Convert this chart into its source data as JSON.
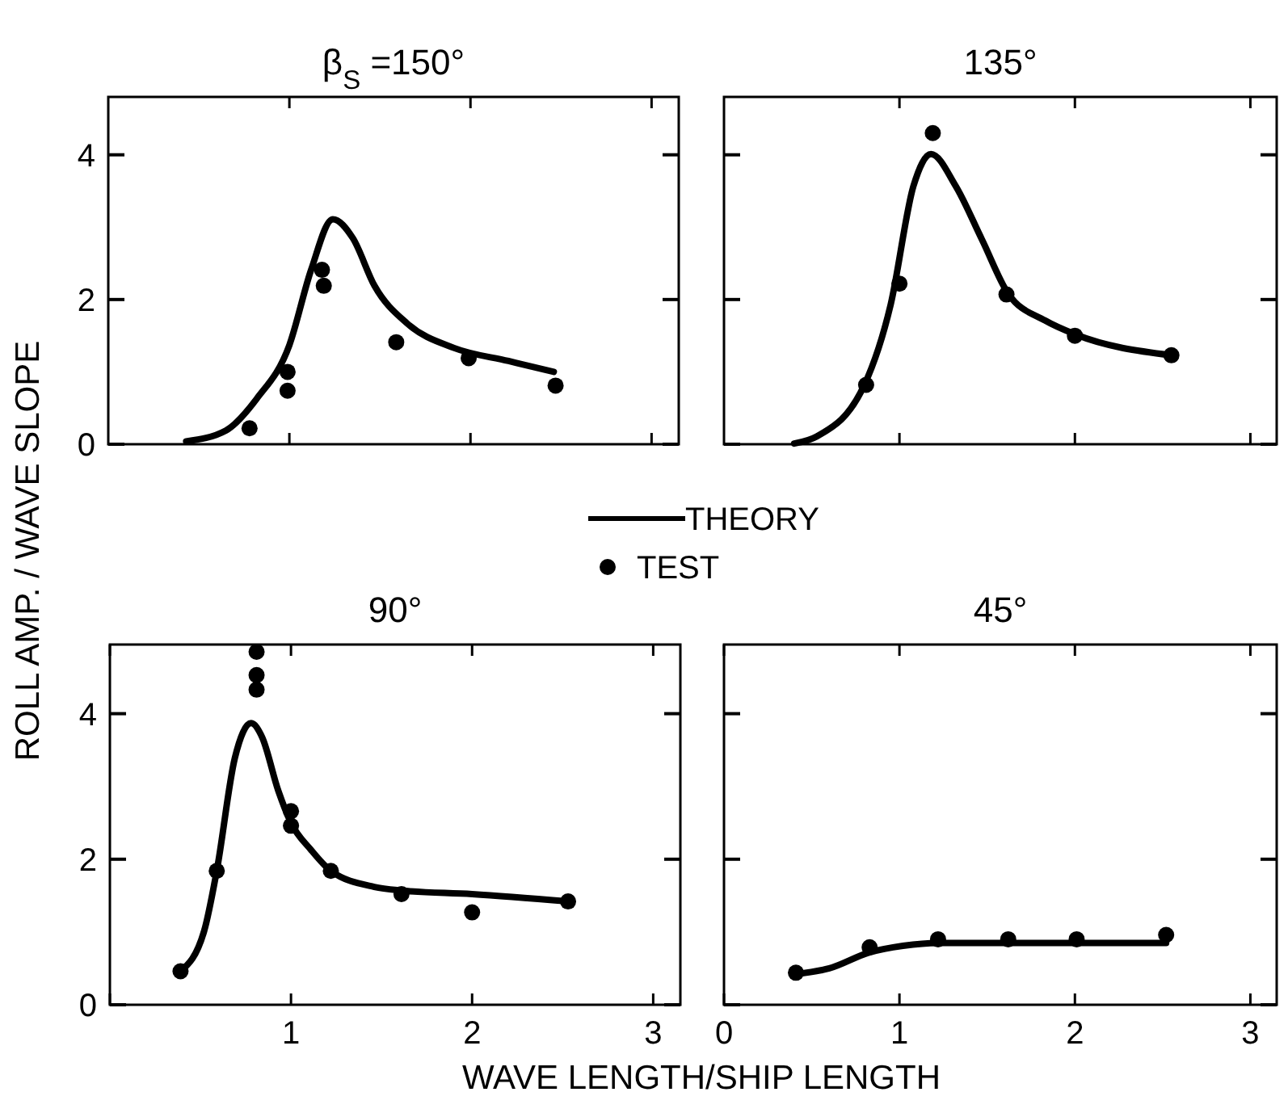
{
  "chart_data": [
    {
      "type": "line",
      "title": "β$_{S}$ =150°",
      "ylabel": "ROLL AMP. / WAVE SLOPE",
      "xlim": [
        0,
        3.15
      ],
      "ylim": [
        0,
        4.8
      ],
      "xticks": [
        {
          "value": 1,
          "label": null
        },
        {
          "value": 2,
          "label": null
        },
        {
          "value": 3,
          "label": null
        }
      ],
      "yticks": [
        0,
        2,
        4
      ],
      "tick_labels": "y",
      "legend": "bottom",
      "grid": false,
      "series": [
        {
          "name": "THEORY",
          "color": "#000000",
          "line_style": "solid",
          "marker": "none",
          "x": [
            0.43,
            0.65,
            0.82,
            1.0,
            1.12,
            1.24,
            1.35,
            1.47,
            1.65,
            1.91,
            2.21,
            2.46
          ],
          "values": [
            0.04,
            0.19,
            0.63,
            1.37,
            2.41,
            3.11,
            2.85,
            2.19,
            1.67,
            1.33,
            1.15,
            1.0
          ]
        },
        {
          "name": "TEST",
          "type": "scatter",
          "color": "#000000",
          "marker": "circle",
          "x": [
            0.78,
            0.99,
            0.99,
            1.18,
            1.19,
            1.59,
            1.99,
            2.47
          ],
          "values": [
            0.22,
            1.0,
            0.74,
            2.41,
            2.19,
            1.41,
            1.19,
            0.81
          ]
        }
      ]
    },
    {
      "type": "line",
      "title": "135°",
      "xlim": [
        0,
        3.15
      ],
      "ylim": [
        0,
        4.8
      ],
      "xticks": [
        {
          "value": 1,
          "label": null
        },
        {
          "value": 2,
          "label": null
        },
        {
          "value": 3,
          "label": null
        }
      ],
      "yticks": [
        0,
        2,
        4
      ],
      "tick_labels": false,
      "grid": false,
      "series": [
        {
          "color": "#000000",
          "line_style": "solid",
          "marker": "none",
          "x": [
            0.4,
            0.53,
            0.8,
            0.95,
            1.08,
            1.18,
            1.32,
            1.47,
            1.62,
            1.83,
            2.0,
            2.55
          ],
          "values": [
            0.01,
            0.11,
            0.82,
            1.93,
            3.57,
            4.01,
            3.57,
            2.83,
            2.08,
            1.71,
            1.52,
            1.23
          ]
        },
        {
          "type": "scatter",
          "color": "#000000",
          "marker": "circle",
          "x": [
            0.81,
            1.0,
            1.19,
            1.61,
            2.0,
            2.55
          ],
          "values": [
            0.82,
            2.22,
            4.3,
            2.07,
            1.5,
            1.23
          ]
        }
      ]
    },
    {
      "type": "line",
      "title": "90°",
      "xlabel": "WAVE LENGTH/SHIP LENGTH",
      "xlim": [
        0,
        3.15
      ],
      "ylim": [
        0,
        4.95
      ],
      "xticks": [
        {
          "value": 0,
          "label": null
        },
        1,
        2,
        3
      ],
      "yticks": [
        0,
        2,
        4
      ],
      "grid": false,
      "series": [
        {
          "color": "#000000",
          "line_style": "solid",
          "marker": "none",
          "x": [
            0.39,
            0.52,
            0.59,
            0.69,
            0.78,
            0.84,
            0.93,
            1.0,
            1.11,
            1.22,
            1.46,
            1.61,
            2.0,
            2.53
          ],
          "values": [
            0.46,
            1.01,
            1.84,
            3.39,
            3.87,
            3.68,
            2.94,
            2.5,
            2.13,
            1.84,
            1.62,
            1.57,
            1.52,
            1.42
          ]
        },
        {
          "type": "scatter",
          "color": "#000000",
          "marker": "circle",
          "x": [
            0.39,
            0.59,
            0.81,
            0.81,
            0.81,
            1.0,
            1.0,
            1.22,
            1.61,
            2.0,
            2.53
          ],
          "values": [
            0.46,
            1.84,
            4.85,
            4.53,
            4.33,
            2.66,
            2.46,
            1.84,
            1.52,
            1.27,
            1.42
          ]
        }
      ]
    },
    {
      "type": "line",
      "title": "45°",
      "xlim": [
        0,
        3.15
      ],
      "ylim": [
        0,
        4.95
      ],
      "xticks": [
        0,
        1,
        2,
        3
      ],
      "yticks": [
        0,
        2,
        4
      ],
      "tick_labels": "x",
      "grid": false,
      "series": [
        {
          "color": "#000000",
          "line_style": "solid",
          "marker": "none",
          "x": [
            0.41,
            0.6,
            0.83,
            1.02,
            1.22,
            2.52
          ],
          "values": [
            0.42,
            0.5,
            0.72,
            0.81,
            0.85,
            0.85
          ]
        },
        {
          "type": "scatter",
          "color": "#000000",
          "marker": "circle",
          "x": [
            0.41,
            0.83,
            1.22,
            1.62,
            2.01,
            2.52
          ],
          "values": [
            0.44,
            0.79,
            0.9,
            0.9,
            0.9,
            0.96
          ]
        }
      ]
    }
  ]
}
